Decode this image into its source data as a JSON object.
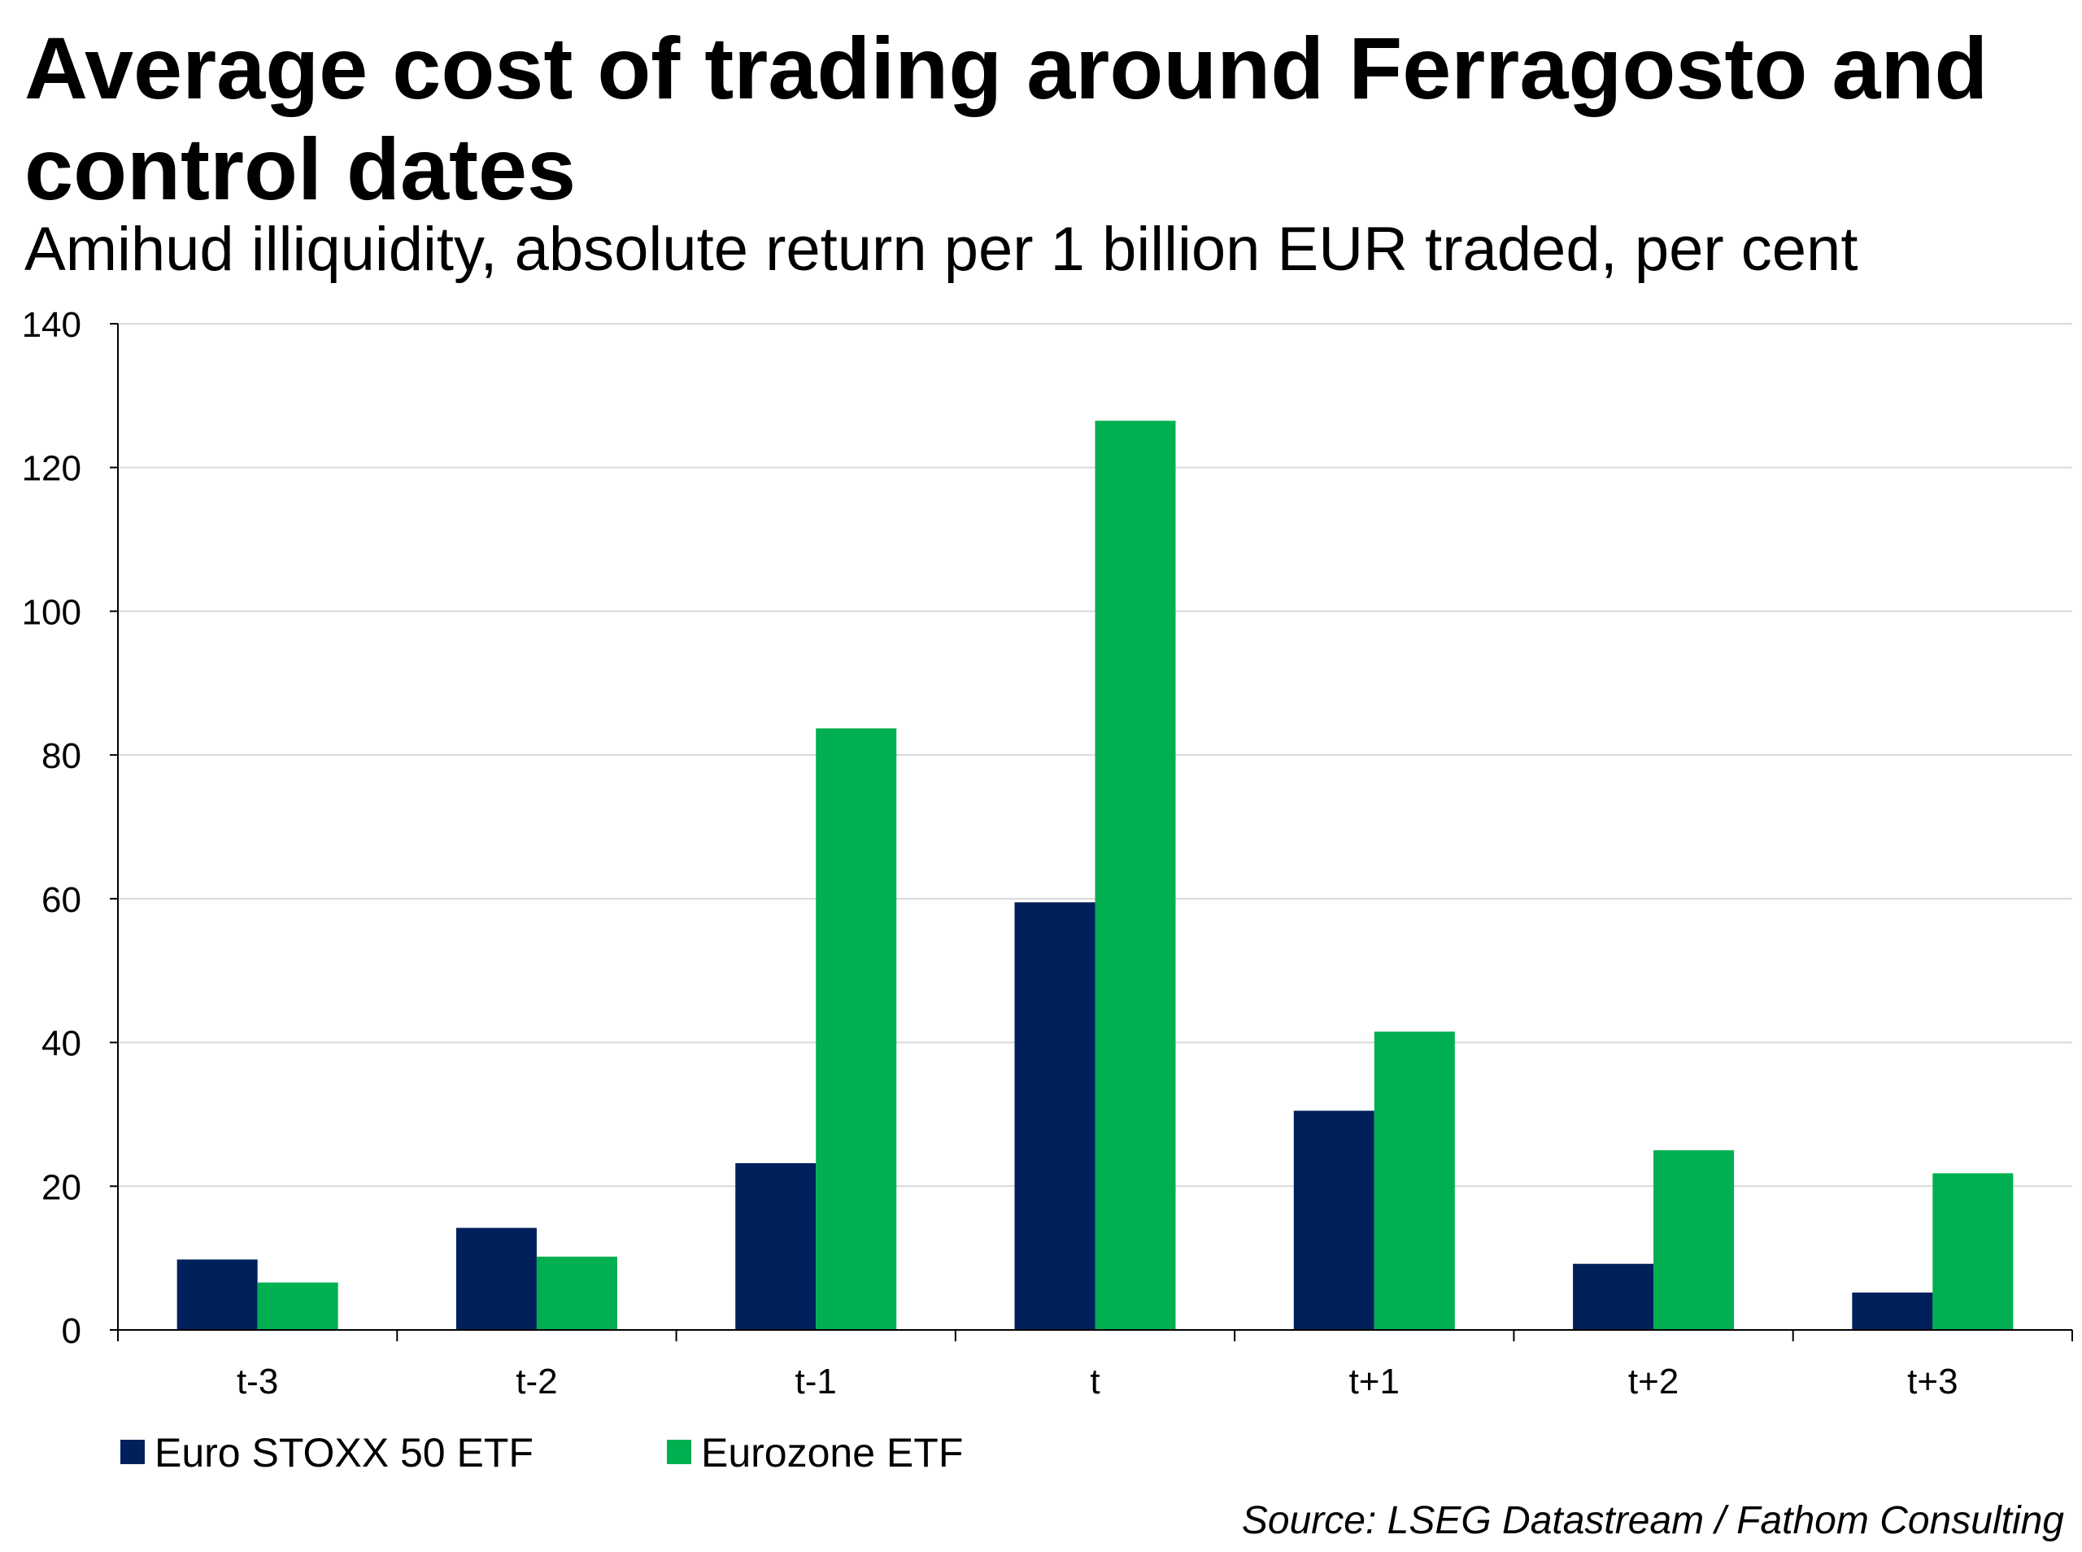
{
  "title": "Average cost of trading around Ferragosto and control dates",
  "subtitle": "Amihud illiquidity, absolute return per 1 billion EUR traded, per cent",
  "source": "Source: LSEG Datastream / Fathom Consulting",
  "colors": {
    "series1": "#00205b",
    "series2": "#00af50",
    "grid": "#d9d9d9",
    "axis": "#000000"
  },
  "chart_data": {
    "type": "bar",
    "title": "Average cost of trading around Ferragosto and control dates",
    "subtitle": "Amihud illiquidity, absolute return per 1 billion EUR traded, per cent",
    "xlabel": "",
    "ylabel": "",
    "ylim": [
      0,
      140
    ],
    "yticks": [
      0,
      20,
      40,
      60,
      80,
      100,
      120,
      140
    ],
    "grid": true,
    "legend_position": "bottom-left",
    "categories": [
      "t-3",
      "t-2",
      "t-1",
      "t",
      "t+1",
      "t+2",
      "t+3"
    ],
    "series": [
      {
        "name": "Euro STOXX 50 ETF",
        "color": "#00205b",
        "values": [
          9.8,
          14.2,
          23.2,
          59.5,
          30.5,
          9.2,
          5.2
        ]
      },
      {
        "name": "Eurozone ETF",
        "color": "#00af50",
        "values": [
          6.6,
          10.2,
          83.7,
          126.5,
          41.5,
          25.0,
          21.8
        ]
      }
    ]
  }
}
